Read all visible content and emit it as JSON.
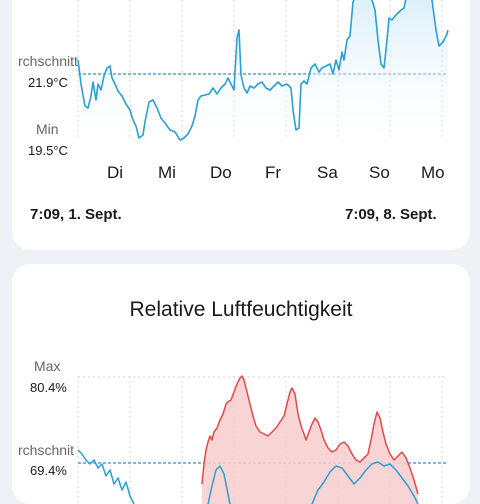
{
  "colors": {
    "temp_line": "#2aa0d0",
    "temp_fill": "#cfeaf8",
    "hum_line_blue": "#2aa0d0",
    "hum_line_red": "#e04848",
    "hum_fill": "#f8cccc",
    "avg_line": "#2a8fd8",
    "grid": "#d6d6d6"
  },
  "temperature": {
    "avg_label": "rchschnitt",
    "avg_value": "21.9°C",
    "min_label": "Min",
    "min_value": "19.5°C",
    "days": [
      "Di",
      "Mi",
      "Do",
      "Fr",
      "Sa",
      "So",
      "Mo"
    ],
    "range_start": "7:09,  1. Sept.",
    "range_end": "7:09,  8. Sept."
  },
  "humidity": {
    "title": "Relative Luftfeuchtigkeit",
    "max_label": "Max",
    "max_value": "80.4%",
    "avg_label": "rchschnit",
    "avg_value": "69.4%"
  }
}
